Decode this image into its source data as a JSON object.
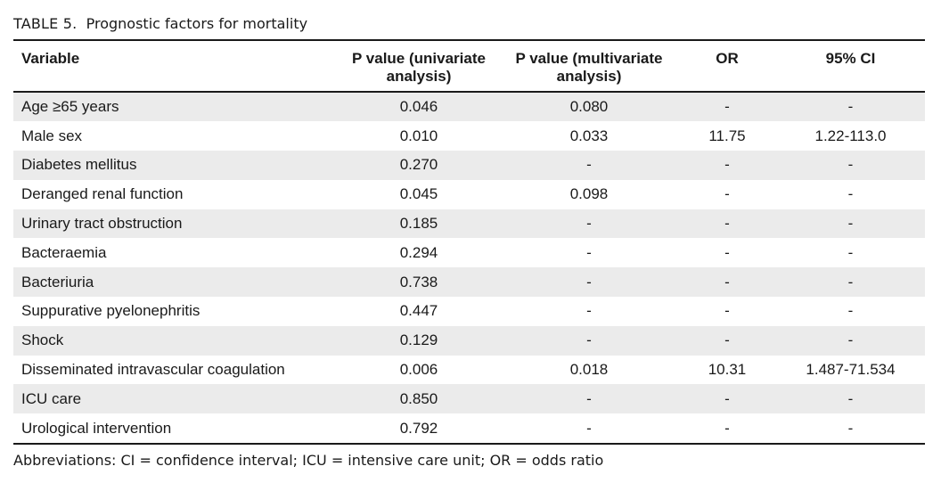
{
  "caption": {
    "label": "TABLE 5.",
    "title": "Prognostic factors for mortality"
  },
  "table": {
    "headers": {
      "variable": "Variable",
      "p_uni_line1": "P value (univariate",
      "p_uni_line2": "analysis)",
      "p_multi_line1": "P value (multivariate",
      "p_multi_line2": "analysis)",
      "or": "OR",
      "ci": "95% CI"
    },
    "rows": [
      {
        "variable": "Age ≥65 years",
        "p_uni": "0.046",
        "p_multi": "0.080",
        "or": "-",
        "ci": "-"
      },
      {
        "variable": "Male sex",
        "p_uni": "0.010",
        "p_multi": "0.033",
        "or": "11.75",
        "ci": "1.22-113.0"
      },
      {
        "variable": "Diabetes mellitus",
        "p_uni": "0.270",
        "p_multi": "-",
        "or": "-",
        "ci": "-"
      },
      {
        "variable": "Deranged renal function",
        "p_uni": "0.045",
        "p_multi": "0.098",
        "or": "-",
        "ci": "-"
      },
      {
        "variable": "Urinary tract obstruction",
        "p_uni": "0.185",
        "p_multi": "-",
        "or": "-",
        "ci": "-"
      },
      {
        "variable": "Bacteraemia",
        "p_uni": "0.294",
        "p_multi": "-",
        "or": "-",
        "ci": "-"
      },
      {
        "variable": "Bacteriuria",
        "p_uni": "0.738",
        "p_multi": "-",
        "or": "-",
        "ci": "-"
      },
      {
        "variable": "Suppurative pyelonephritis",
        "p_uni": "0.447",
        "p_multi": "-",
        "or": "-",
        "ci": "-"
      },
      {
        "variable": "Shock",
        "p_uni": "0.129",
        "p_multi": "-",
        "or": "-",
        "ci": "-"
      },
      {
        "variable": "Disseminated intravascular coagulation",
        "p_uni": "0.006",
        "p_multi": "0.018",
        "or": "10.31",
        "ci": "1.487-71.534"
      },
      {
        "variable": "ICU care",
        "p_uni": "0.850",
        "p_multi": "-",
        "or": "-",
        "ci": "-"
      },
      {
        "variable": "Urological intervention",
        "p_uni": "0.792",
        "p_multi": "-",
        "or": "-",
        "ci": "-"
      }
    ]
  },
  "footnote": "Abbreviations: CI = confidence interval; ICU = intensive care unit; OR = odds ratio",
  "colors": {
    "shaded_row": "#ebebeb",
    "rule": "#1a1a1a",
    "text": "#1a1a1a"
  }
}
